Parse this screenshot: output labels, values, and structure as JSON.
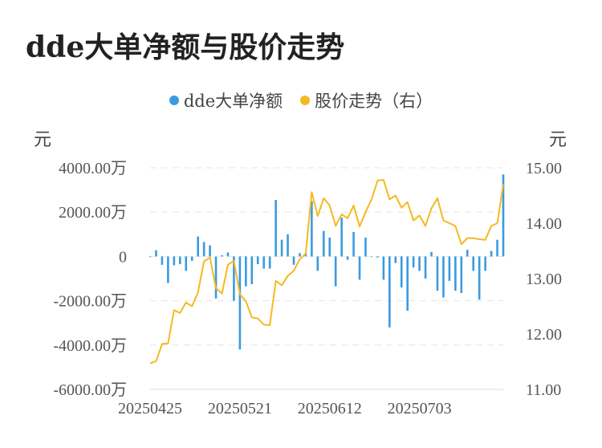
{
  "chart_data": {
    "type": "bar+line",
    "title": "dde大单净额与股价走势",
    "legend": [
      {
        "name": "dde大单净额",
        "color": "#3a9be0"
      },
      {
        "name": "股价走势（右）",
        "color": "#f5b921"
      }
    ],
    "y_left": {
      "unit": "元",
      "ticks": [
        "4000.00万",
        "2000.00万",
        "0",
        "-2000.00万",
        "-4000.00万",
        "-6000.00万"
      ],
      "ylim": [
        -6000,
        4000
      ]
    },
    "y_right": {
      "unit": "元",
      "ticks": [
        "15.00",
        "14.00",
        "13.00",
        "12.00",
        "11.00"
      ],
      "ylim": [
        11.0,
        15.0
      ]
    },
    "x_tick_labels": [
      "20250425",
      "20250521",
      "20250612",
      "20250703"
    ],
    "x_tick_positions": [
      0,
      15,
      30,
      45
    ],
    "dde_net": [
      0,
      280,
      -380,
      -1200,
      -400,
      -350,
      -650,
      -200,
      900,
      650,
      500,
      -1900,
      50,
      180,
      -2000,
      -4200,
      -1350,
      -1250,
      -350,
      -550,
      -550,
      2550,
      750,
      1000,
      -380,
      150,
      150,
      2500,
      -650,
      1150,
      850,
      -1350,
      1750,
      -150,
      1100,
      -1050,
      850,
      0,
      -50,
      -1050,
      -3200,
      -300,
      -1400,
      -2450,
      -500,
      -650,
      -1000,
      200,
      -1550,
      -1850,
      -1100,
      -1550,
      -1650,
      300,
      -650,
      -1950,
      -650,
      250,
      750,
      3700
    ],
    "price": [
      11.47,
      11.51,
      11.82,
      11.83,
      12.43,
      12.38,
      12.57,
      12.5,
      12.75,
      13.31,
      13.38,
      12.83,
      12.73,
      13.25,
      13.32,
      12.72,
      12.59,
      12.3,
      12.28,
      12.17,
      12.16,
      12.96,
      12.88,
      13.05,
      13.14,
      13.35,
      13.45,
      14.56,
      14.13,
      14.45,
      14.32,
      13.95,
      14.16,
      14.09,
      14.32,
      13.94,
      14.2,
      14.43,
      14.77,
      14.78,
      14.43,
      14.5,
      14.28,
      14.38,
      14.05,
      14.14,
      13.95,
      14.27,
      14.45,
      14.05,
      14.0,
      13.95,
      13.62,
      13.73,
      13.73,
      13.71,
      13.7,
      13.95,
      14.0,
      14.7
    ]
  }
}
